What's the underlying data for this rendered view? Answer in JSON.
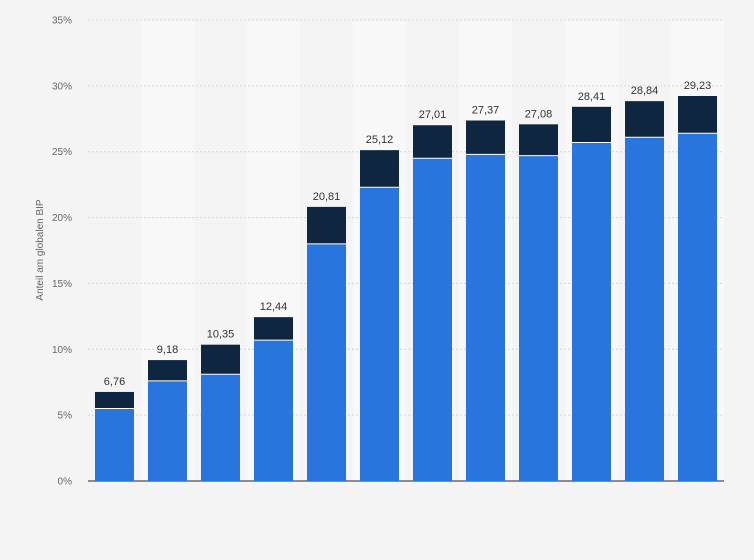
{
  "chart_data": {
    "type": "bar",
    "stacked": true,
    "ylabel": "Anteil am globalen BIP",
    "ylim": [
      0,
      35
    ],
    "yticks": [
      "0%",
      "5%",
      "10%",
      "15%",
      "20%",
      "25%",
      "30%",
      "35%"
    ],
    "grid": true,
    "categories": [
      "",
      "",
      "",
      "",
      "",
      "",
      "",
      "",
      "",
      "",
      "",
      ""
    ],
    "series": [
      {
        "values": [
          5.5,
          7.6,
          8.1,
          10.7,
          18.0,
          22.3,
          24.5,
          24.8,
          24.7,
          25.7,
          26.1,
          26.4
        ],
        "color": "#2876dd"
      },
      {
        "values": [
          1.26,
          1.58,
          2.25,
          1.74,
          2.81,
          2.82,
          2.51,
          2.57,
          2.38,
          2.71,
          2.74,
          2.83
        ],
        "color": "#0f2640"
      }
    ],
    "totals": [
      "6,76",
      "9,18",
      "10,35",
      "12,44",
      "20,81",
      "25,12",
      "27,01",
      "27,37",
      "27,08",
      "28,41",
      "28,84",
      "29,23"
    ],
    "totals_values": [
      6.76,
      9.18,
      10.35,
      12.44,
      20.81,
      25.12,
      27.01,
      27.37,
      27.08,
      28.41,
      28.84,
      29.23
    ]
  }
}
